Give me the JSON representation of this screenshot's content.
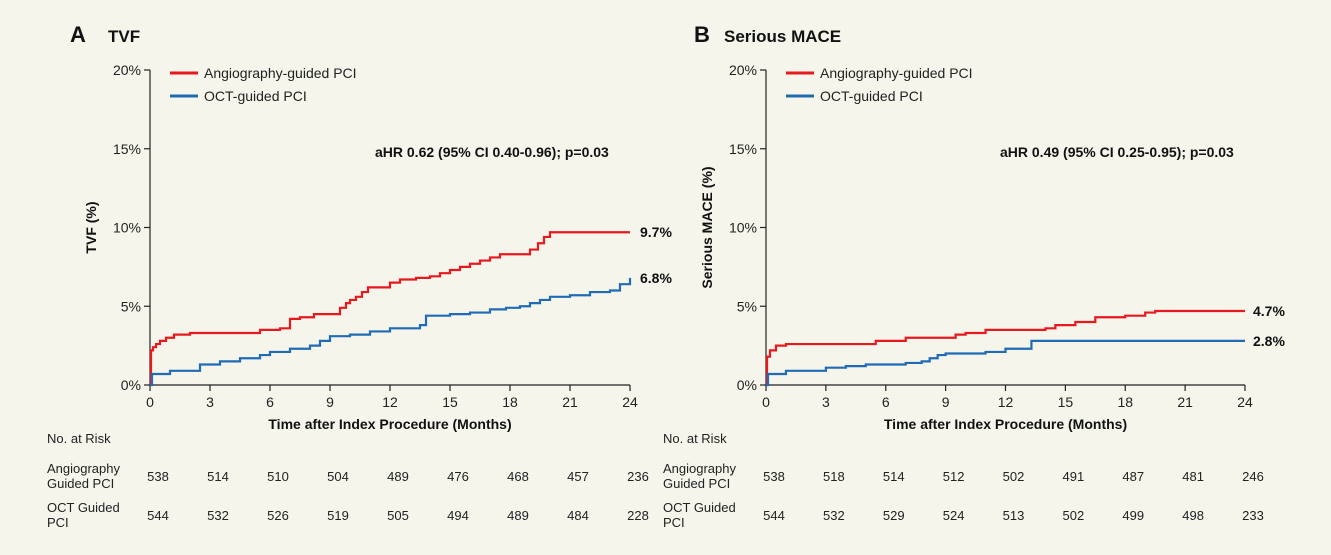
{
  "chart_data": [
    {
      "type": "line",
      "panel": "A",
      "title": "TVF",
      "ylabel": "TVF (%)",
      "xlabel": "Time after Index Procedure (Months)",
      "xlim": [
        0,
        24
      ],
      "ylim": [
        0,
        20
      ],
      "xticks": [
        "0",
        "3",
        "6",
        "9",
        "12",
        "15",
        "18",
        "21",
        "24"
      ],
      "yticks": [
        "0%",
        "5%",
        "10%",
        "15%",
        "20%"
      ],
      "annotation": "aHR 0.62 (95% CI 0.40-0.96); p=0.03",
      "legend_placement": "top-left",
      "series": [
        {
          "name": "Angiography-guided PCI",
          "color": "#e8191e",
          "end_label": "9.7%",
          "x": [
            0,
            0.05,
            0.15,
            0.3,
            0.5,
            0.8,
            1.2,
            2,
            3,
            4,
            5,
            5.5,
            6.5,
            7,
            7.5,
            8.2,
            9,
            9.5,
            9.8,
            10,
            10.3,
            10.6,
            10.9,
            11.5,
            12,
            12.5,
            13.3,
            14,
            14.5,
            15,
            15.5,
            16,
            16.5,
            17,
            17.5,
            18,
            19,
            19.4,
            19.7,
            20,
            21,
            22,
            23,
            24
          ],
          "y": [
            0,
            2.2,
            2.4,
            2.6,
            2.8,
            3.0,
            3.2,
            3.3,
            3.3,
            3.3,
            3.3,
            3.5,
            3.6,
            4.2,
            4.3,
            4.5,
            4.5,
            4.9,
            5.2,
            5.4,
            5.6,
            5.9,
            6.2,
            6.2,
            6.5,
            6.7,
            6.8,
            6.9,
            7.1,
            7.3,
            7.5,
            7.7,
            7.9,
            8.1,
            8.3,
            8.3,
            8.6,
            9.0,
            9.4,
            9.7,
            9.7,
            9.7,
            9.7,
            9.7
          ]
        },
        {
          "name": "OCT-guided PCI",
          "color": "#1f6bb5",
          "end_label": "6.8%",
          "x": [
            0,
            0.1,
            1,
            2,
            2.5,
            3.5,
            4.5,
            5.5,
            6,
            7,
            8,
            8.5,
            9,
            10,
            11,
            12,
            13.5,
            13.8,
            15,
            16,
            17,
            17.8,
            18.5,
            19,
            19.5,
            20,
            21,
            22,
            23,
            23.5,
            24
          ],
          "y": [
            0,
            0.7,
            0.9,
            0.9,
            1.3,
            1.5,
            1.7,
            1.9,
            2.1,
            2.3,
            2.5,
            2.8,
            3.1,
            3.2,
            3.4,
            3.6,
            3.8,
            4.4,
            4.5,
            4.6,
            4.8,
            4.9,
            5.0,
            5.2,
            5.4,
            5.6,
            5.7,
            5.9,
            6.0,
            6.4,
            6.8
          ]
        }
      ],
      "risk_table": {
        "heading": "No. at Risk",
        "rows": [
          {
            "label_lines": [
              "Angiography",
              "Guided PCI"
            ],
            "values": [
              "538",
              "514",
              "510",
              "504",
              "489",
              "476",
              "468",
              "457",
              "236"
            ]
          },
          {
            "label_lines": [
              "OCT Guided",
              "PCI"
            ],
            "values": [
              "544",
              "532",
              "526",
              "519",
              "505",
              "494",
              "489",
              "484",
              "228"
            ]
          }
        ]
      }
    },
    {
      "type": "line",
      "panel": "B",
      "title": "Serious MACE",
      "ylabel": "Serious MACE (%)",
      "xlabel": "Time after Index Procedure (Months)",
      "xlim": [
        0,
        24
      ],
      "ylim": [
        0,
        20
      ],
      "xticks": [
        "0",
        "3",
        "6",
        "9",
        "12",
        "15",
        "18",
        "21",
        "24"
      ],
      "yticks": [
        "0%",
        "5%",
        "10%",
        "15%",
        "20%"
      ],
      "annotation": "aHR 0.49 (95% CI 0.25-0.95); p=0.03",
      "legend_placement": "top-left",
      "series": [
        {
          "name": "Angiography-guided PCI",
          "color": "#e8191e",
          "end_label": "4.7%",
          "x": [
            0,
            0.05,
            0.2,
            0.5,
            1,
            3,
            5,
            5.5,
            7,
            9,
            9.5,
            10,
            11,
            12,
            13,
            14,
            14.5,
            15.5,
            16.5,
            18,
            19,
            19.5,
            20,
            21,
            22,
            23,
            24
          ],
          "y": [
            0,
            1.8,
            2.2,
            2.5,
            2.6,
            2.6,
            2.6,
            2.8,
            3.0,
            3.0,
            3.2,
            3.3,
            3.5,
            3.5,
            3.5,
            3.6,
            3.8,
            4.0,
            4.3,
            4.4,
            4.6,
            4.7,
            4.7,
            4.7,
            4.7,
            4.7,
            4.7
          ]
        },
        {
          "name": "OCT-guided PCI",
          "color": "#1f6bb5",
          "end_label": "2.8%",
          "x": [
            0,
            0.1,
            1,
            2,
            3,
            4,
            5,
            6,
            7,
            7.8,
            8.2,
            8.6,
            9,
            10,
            11,
            12,
            13,
            13.3,
            15,
            18,
            21,
            24
          ],
          "y": [
            0,
            0.7,
            0.9,
            0.9,
            1.1,
            1.2,
            1.3,
            1.3,
            1.4,
            1.5,
            1.7,
            1.9,
            2.0,
            2.0,
            2.1,
            2.3,
            2.3,
            2.8,
            2.8,
            2.8,
            2.8,
            2.8
          ]
        }
      ],
      "risk_table": {
        "heading": "No. at Risk",
        "rows": [
          {
            "label_lines": [
              "Angiography",
              "Guided PCI"
            ],
            "values": [
              "538",
              "518",
              "514",
              "512",
              "502",
              "491",
              "487",
              "481",
              "246"
            ]
          },
          {
            "label_lines": [
              "OCT Guided",
              "PCI"
            ],
            "values": [
              "544",
              "532",
              "529",
              "524",
              "513",
              "502",
              "499",
              "498",
              "233"
            ]
          }
        ]
      }
    }
  ]
}
